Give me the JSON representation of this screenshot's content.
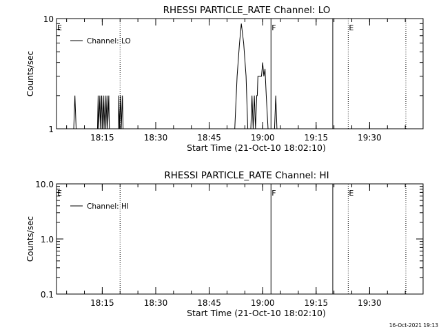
{
  "chart_data": [
    {
      "type": "line",
      "title": "RHESSI PARTICLE_RATE Channel: LO",
      "xlabel": "Start Time (21-Oct-10 18:02:10)",
      "ylabel": "Counts/sec",
      "y_scale": "log",
      "ylim": [
        1,
        10
      ],
      "y_ticks": [
        {
          "value": 1,
          "label": "1"
        },
        {
          "value": 10,
          "label": "10"
        }
      ],
      "xlim": [
        "18:02:10",
        "19:45:00"
      ],
      "x_ticks": [
        {
          "value": "18:15",
          "label": "18:15"
        },
        {
          "value": "18:30",
          "label": "18:30"
        },
        {
          "value": "18:45",
          "label": "18:45"
        },
        {
          "value": "19:00",
          "label": "19:00"
        },
        {
          "value": "19:15",
          "label": "19:15"
        },
        {
          "value": "19:30",
          "label": "19:30"
        }
      ],
      "legend": {
        "position": "top-left",
        "entries": [
          "Channel: LO"
        ]
      },
      "grid": false,
      "series": [
        {
          "name": "Channel: LO",
          "points": [
            [
              "18:07:00",
              1
            ],
            [
              "18:07:20",
              2
            ],
            [
              "18:07:40",
              1
            ],
            [
              "18:13:40",
              1
            ],
            [
              "18:13:50",
              2
            ],
            [
              "18:14:00",
              1
            ],
            [
              "18:14:20",
              2
            ],
            [
              "18:14:30",
              1
            ],
            [
              "18:14:50",
              2
            ],
            [
              "18:15:00",
              1
            ],
            [
              "18:15:20",
              2
            ],
            [
              "18:15:30",
              1
            ],
            [
              "18:15:50",
              2
            ],
            [
              "18:16:00",
              1
            ],
            [
              "18:16:20",
              2
            ],
            [
              "18:16:30",
              1
            ],
            [
              "18:16:50",
              2
            ],
            [
              "18:17:00",
              1
            ],
            [
              "18:19:30",
              1
            ],
            [
              "18:19:40",
              2
            ],
            [
              "18:19:50",
              1
            ],
            [
              "18:20:10",
              2
            ],
            [
              "18:20:20",
              1
            ],
            [
              "18:20:40",
              2
            ],
            [
              "18:20:50",
              1
            ],
            [
              "18:52:10",
              1
            ],
            [
              "18:52:50",
              3
            ],
            [
              "18:53:30",
              6
            ],
            [
              "18:54:00",
              9
            ],
            [
              "18:54:40",
              6
            ],
            [
              "18:55:20",
              3
            ],
            [
              "18:55:50",
              1
            ],
            [
              "18:56:40",
              1
            ],
            [
              "18:57:00",
              2
            ],
            [
              "18:57:20",
              1
            ],
            [
              "18:57:40",
              2
            ],
            [
              "18:58:00",
              1
            ],
            [
              "18:58:20",
              2
            ],
            [
              "18:58:30",
              2
            ],
            [
              "18:58:40",
              3
            ],
            [
              "18:59:40",
              3
            ],
            [
              "19:00:00",
              4
            ],
            [
              "19:00:20",
              3
            ],
            [
              "19:00:40",
              3.5
            ],
            [
              "19:01:00",
              2
            ],
            [
              "19:01:30",
              1
            ],
            [
              "19:03:20",
              1
            ],
            [
              "19:03:40",
              2
            ],
            [
              "19:04:00",
              1
            ]
          ]
        }
      ],
      "vertical_markers": [
        {
          "time": "18:02:10",
          "label": "E",
          "style": "solid"
        },
        {
          "time": "18:20:00",
          "label": "",
          "style": "dotted"
        },
        {
          "time": "19:02:20",
          "label": "F",
          "style": "solid"
        },
        {
          "time": "19:19:40",
          "label": "",
          "style": "solid"
        },
        {
          "time": "19:24:00",
          "label": "E",
          "style": "dotted"
        },
        {
          "time": "19:40:10",
          "label": "",
          "style": "dotted"
        }
      ]
    },
    {
      "type": "line",
      "title": "RHESSI PARTICLE_RATE Channel: HI",
      "xlabel": "Start Time (21-Oct-10 18:02:10)",
      "ylabel": "Counts/sec",
      "y_scale": "log",
      "ylim": [
        0.1,
        10
      ],
      "y_ticks": [
        {
          "value": 0.1,
          "label": "0.1"
        },
        {
          "value": 1,
          "label": "1.0"
        },
        {
          "value": 10,
          "label": "10.0"
        }
      ],
      "xlim": [
        "18:02:10",
        "19:45:00"
      ],
      "x_ticks": [
        {
          "value": "18:15",
          "label": "18:15"
        },
        {
          "value": "18:30",
          "label": "18:30"
        },
        {
          "value": "18:45",
          "label": "18:45"
        },
        {
          "value": "19:00",
          "label": "19:00"
        },
        {
          "value": "19:15",
          "label": "19:15"
        },
        {
          "value": "19:30",
          "label": "19:30"
        }
      ],
      "legend": {
        "position": "top-left",
        "entries": [
          "Channel: HI"
        ]
      },
      "grid": false,
      "series": [
        {
          "name": "Channel: HI",
          "points": []
        }
      ],
      "vertical_markers": [
        {
          "time": "18:02:10",
          "label": "E",
          "style": "solid"
        },
        {
          "time": "18:20:00",
          "label": "",
          "style": "dotted"
        },
        {
          "time": "19:02:20",
          "label": "F",
          "style": "solid"
        },
        {
          "time": "19:19:40",
          "label": "",
          "style": "solid"
        },
        {
          "time": "19:24:00",
          "label": "E",
          "style": "dotted"
        },
        {
          "time": "19:40:10",
          "label": "",
          "style": "dotted"
        }
      ]
    }
  ],
  "footer": {
    "timestamp": "16-Oct-2021 19:13"
  }
}
